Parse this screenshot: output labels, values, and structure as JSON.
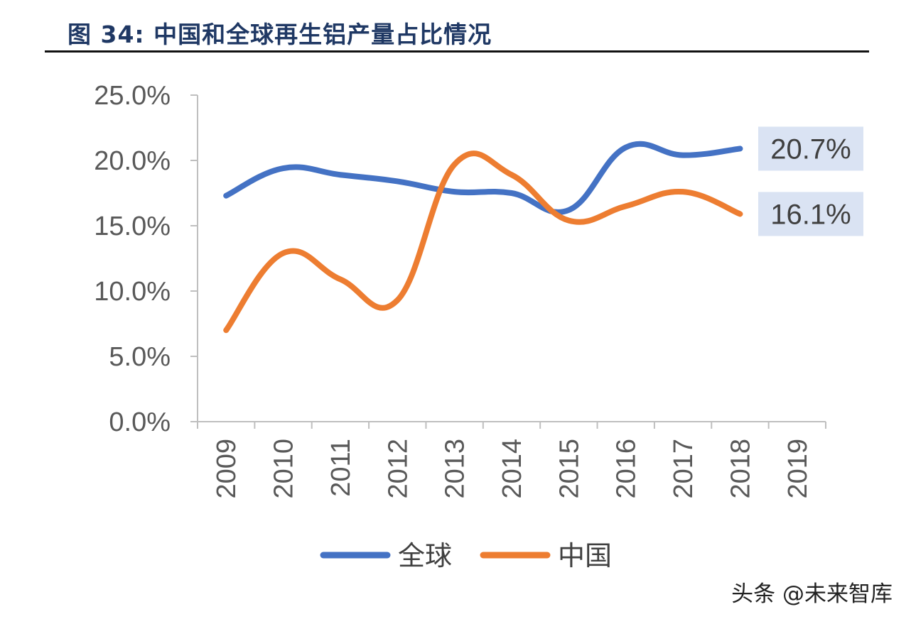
{
  "figure": {
    "title": "图 34:  中国和全球再生铝产量占比情况",
    "watermark": "头条 @未来智库"
  },
  "chart_data": {
    "type": "line",
    "categories": [
      "2009",
      "2010",
      "2011",
      "2012",
      "2013",
      "2014",
      "2015",
      "2016",
      "2017",
      "2018",
      "2019"
    ],
    "series": [
      {
        "name": "全球",
        "color": "#4472c4",
        "values": [
          17.3,
          19.4,
          18.9,
          18.4,
          17.6,
          17.5,
          16.2,
          21.0,
          20.4,
          20.9,
          null
        ]
      },
      {
        "name": "中国",
        "color": "#ed7d31",
        "values": [
          7.0,
          12.9,
          10.9,
          9.3,
          19.7,
          18.9,
          15.4,
          16.5,
          17.6,
          15.9,
          null
        ]
      }
    ],
    "ylim": [
      0,
      25
    ],
    "yticks": [
      "0.0%",
      "5.0%",
      "10.0%",
      "15.0%",
      "20.0%",
      "25.0%"
    ],
    "data_labels": [
      "20.7%",
      "16.1%"
    ],
    "legend_position": "bottom",
    "grid": false
  }
}
